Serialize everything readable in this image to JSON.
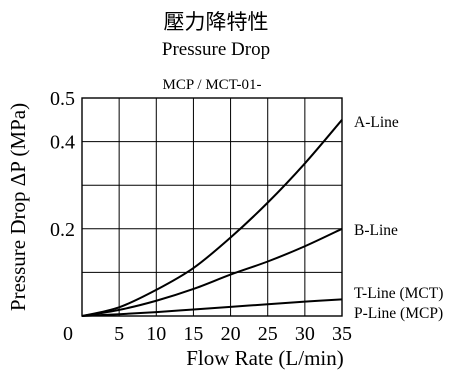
{
  "chart_data": {
    "type": "line",
    "title_cn": "壓力降特性",
    "title": "Pressure Drop",
    "subtitle": "MCP / MCT-01-",
    "xlabel": "Flow Rate (L/min)",
    "ylabel": "Pressure Drop ΔP (MPa)",
    "xlim": [
      0,
      35
    ],
    "ylim": [
      0,
      0.5
    ],
    "x_ticks": [
      0,
      5,
      10,
      15,
      20,
      25,
      30,
      35
    ],
    "y_tick_labels": [
      {
        "value": 0.2,
        "label": "0.2"
      },
      {
        "value": 0.4,
        "label": "0.4"
      },
      {
        "value": 0.5,
        "label": "0.5"
      }
    ],
    "grid": true,
    "series": [
      {
        "name": "A-Line",
        "x": [
          0,
          5,
          10,
          15,
          20,
          25,
          30,
          35
        ],
        "y": [
          0,
          0.02,
          0.06,
          0.11,
          0.18,
          0.26,
          0.35,
          0.45
        ]
      },
      {
        "name": "B-Line",
        "x": [
          0,
          5,
          10,
          15,
          20,
          25,
          30,
          35
        ],
        "y": [
          0,
          0.014,
          0.035,
          0.062,
          0.095,
          0.125,
          0.16,
          0.2
        ]
      },
      {
        "name": "T-Line (MCT)",
        "x": [
          0,
          5,
          10,
          15,
          20,
          25,
          30,
          35
        ],
        "y": [
          0,
          0.004,
          0.009,
          0.015,
          0.021,
          0.027,
          0.033,
          0.038
        ]
      },
      {
        "name": "P-Line (MCP)",
        "x": [
          0,
          5,
          10,
          15,
          20,
          25,
          30,
          35
        ],
        "y": [
          0,
          0.004,
          0.009,
          0.015,
          0.021,
          0.027,
          0.033,
          0.038
        ]
      }
    ]
  }
}
